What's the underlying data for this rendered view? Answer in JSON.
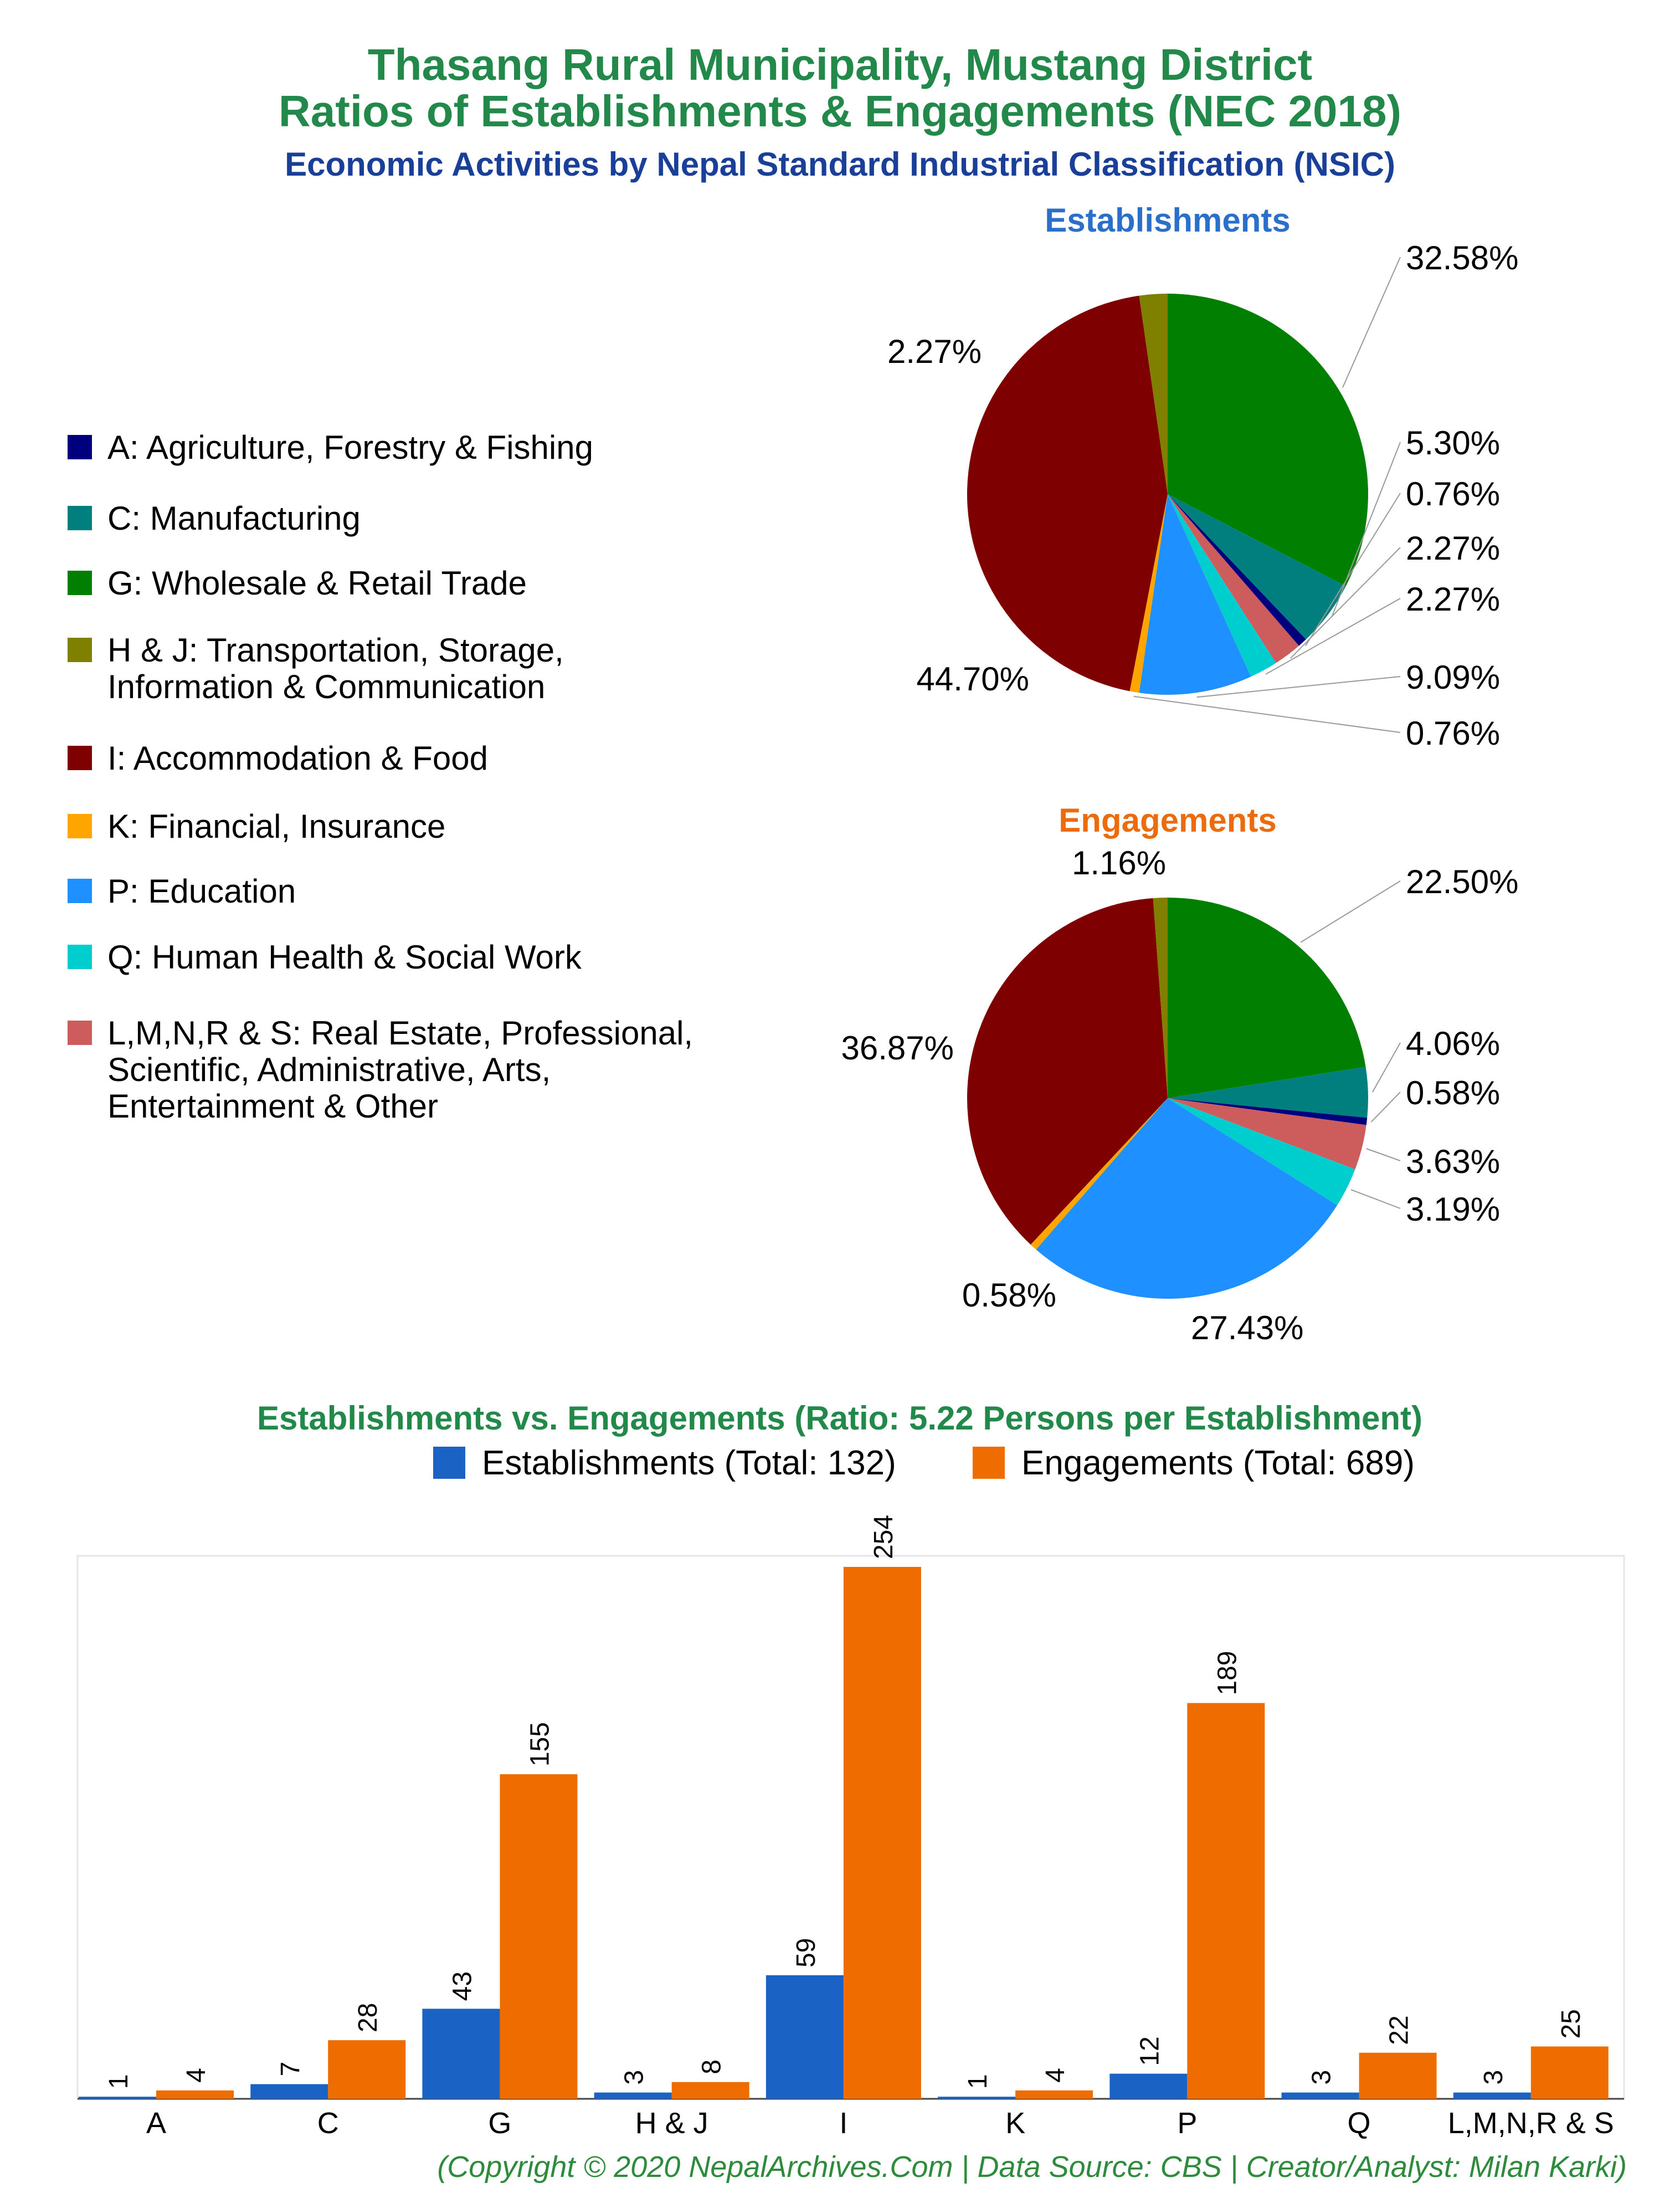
{
  "titles": {
    "line1": "Thasang Rural Municipality, Mustang District",
    "line2": "Ratios of Establishments & Engagements (NEC 2018)",
    "subtitle": "Economic Activities by Nepal Standard Industrial Classification (NSIC)",
    "establishments_pie_title": "Establishments",
    "engagements_pie_title": "Engagements",
    "bar_title": "Establishments vs. Engagements (Ratio: 5.22 Persons per Establishment)"
  },
  "colors": {
    "title_green": "#23894a",
    "subtitle_blue": "#1a3f99",
    "establishments_title": "#2a6fc9",
    "engagements_title": "#ec6b0c",
    "bar_establishments": "#1a62c3",
    "bar_engagements": "#ee6c00",
    "footer_green": "#2e8b3c"
  },
  "legend": [
    {
      "label": "A: Agriculture, Forestry & Fishing",
      "color": "#00007f",
      "icon": "square"
    },
    {
      "label": "C: Manufacturing",
      "color": "#007f7f",
      "icon": "square"
    },
    {
      "label": "G: Wholesale & Retail Trade",
      "color": "#007f00",
      "icon": "square"
    },
    {
      "label": "H & J: Transportation, Storage,\nInformation & Communication",
      "color": "#7f7f00",
      "icon": "square"
    },
    {
      "label": "I: Accommodation & Food",
      "color": "#7f0000",
      "icon": "square"
    },
    {
      "label": "K: Financial, Insurance",
      "color": "#ffa500",
      "icon": "square"
    },
    {
      "label": "P: Education",
      "color": "#1e90ff",
      "icon": "square"
    },
    {
      "label": "Q: Human Health & Social Work",
      "color": "#00cdcd",
      "icon": "square"
    },
    {
      "label": "L,M,N,R & S: Real Estate, Professional,\nScientific, Administrative, Arts,\nEntertainment & Other",
      "color": "#cd5c5c",
      "icon": "square"
    }
  ],
  "bar_legend": {
    "establishments_label": "Establishments (Total: 132)",
    "engagements_label": "Engagements (Total: 689)"
  },
  "chart_data": [
    {
      "type": "pie",
      "title": "Establishments",
      "order": [
        "G",
        "C",
        "A",
        "L,M,N,R & S",
        "Q",
        "P",
        "K",
        "I",
        "H & J"
      ],
      "values": [
        32.58,
        5.3,
        0.76,
        2.27,
        2.27,
        9.09,
        0.76,
        44.7,
        2.27
      ],
      "labels": [
        "32.58%",
        "5.30%",
        "0.76%",
        "2.27%",
        "2.27%",
        "9.09%",
        "0.76%",
        "44.70%",
        "2.27%"
      ]
    },
    {
      "type": "pie",
      "title": "Engagements",
      "order": [
        "G",
        "C",
        "A",
        "L,M,N,R & S",
        "Q",
        "P",
        "K",
        "I",
        "H & J"
      ],
      "values": [
        22.5,
        4.06,
        0.58,
        3.63,
        3.19,
        27.43,
        0.58,
        36.87,
        1.16
      ],
      "labels": [
        "22.50%",
        "4.06%",
        "0.58%",
        "3.63%",
        "3.19%",
        "27.43%",
        "0.58%",
        "36.87%",
        "1.16%"
      ]
    },
    {
      "type": "bar",
      "title": "Establishments vs. Engagements (Ratio: 5.22 Persons per Establishment)",
      "categories": [
        "A",
        "C",
        "G",
        "H & J",
        "I",
        "K",
        "P",
        "Q",
        "L,M,N,R & S"
      ],
      "series": [
        {
          "name": "Establishments (Total: 132)",
          "values": [
            1,
            7,
            43,
            3,
            59,
            1,
            12,
            3,
            3
          ]
        },
        {
          "name": "Engagements (Total: 689)",
          "values": [
            4,
            28,
            155,
            8,
            254,
            4,
            189,
            22,
            25
          ]
        }
      ],
      "ylim": [
        0,
        254
      ]
    }
  ],
  "footer": "(Copyright © 2020 NepalArchives.Com | Data Source: CBS | Creator/Analyst: Milan Karki)"
}
